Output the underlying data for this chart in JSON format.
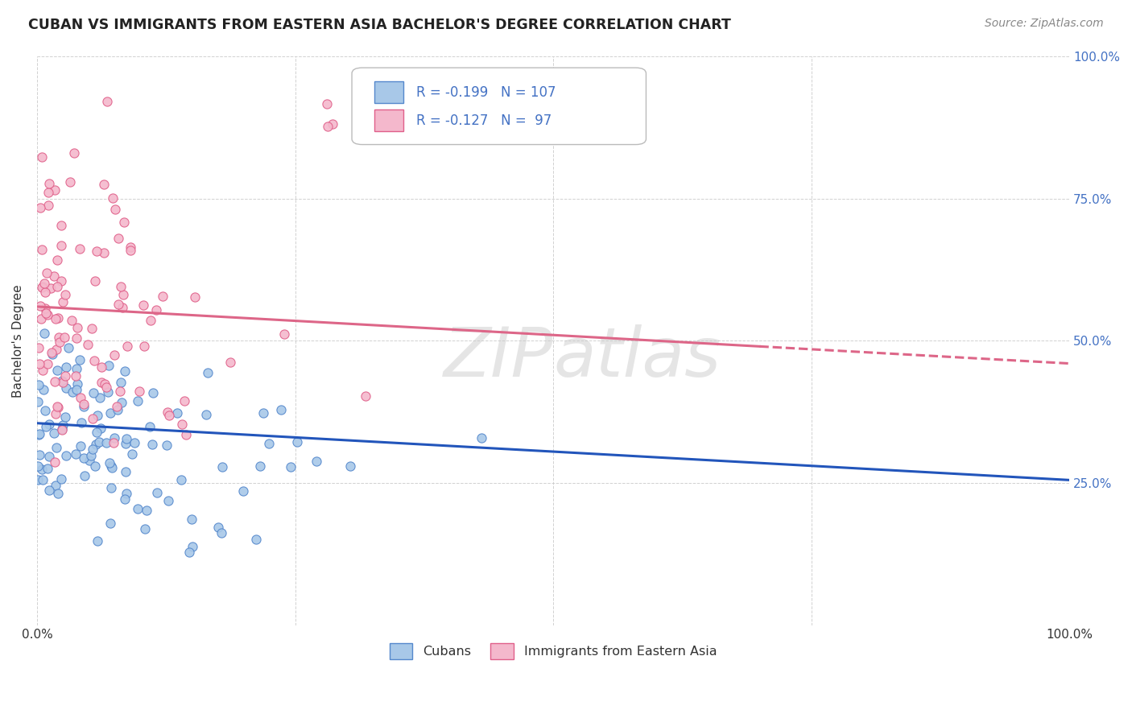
{
  "title": "CUBAN VS IMMIGRANTS FROM EASTERN ASIA BACHELOR'S DEGREE CORRELATION CHART",
  "source": "Source: ZipAtlas.com",
  "ylabel": "Bachelor's Degree",
  "legend_label1": "Cubans",
  "legend_label2": "Immigrants from Eastern Asia",
  "r1": -0.199,
  "n1": 107,
  "r2": -0.127,
  "n2": 97,
  "color_blue_fill": "#a8c8e8",
  "color_blue_edge": "#5588cc",
  "color_pink_fill": "#f4b8cc",
  "color_pink_edge": "#e0608a",
  "color_line_blue": "#2255bb",
  "color_line_pink": "#dd6688",
  "watermark": "ZIPatlas",
  "watermark_color": "#cccccc",
  "grid_color": "#cccccc",
  "title_color": "#222222",
  "source_color": "#888888",
  "right_tick_color": "#4472c4",
  "legend_text_color": "#333333",
  "stats_text_color": "#4472c4",
  "xlim": [
    0.0,
    1.0
  ],
  "ylim": [
    0.0,
    1.0
  ],
  "blue_trend_start_y": 0.355,
  "blue_trend_end_y": 0.255,
  "pink_trend_start_y": 0.56,
  "pink_trend_end_y": 0.46
}
